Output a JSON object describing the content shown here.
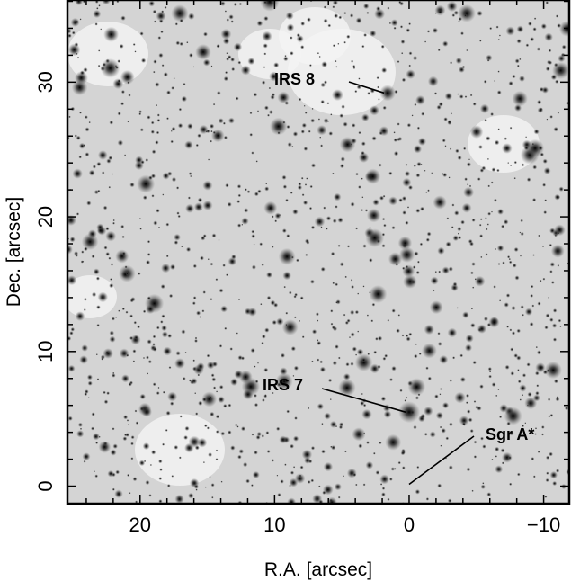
{
  "figure": {
    "x_axis": {
      "label": "R.A. [arcsec]",
      "ticks": [
        20,
        10,
        0,
        -10
      ],
      "tick_labels": [
        "20",
        "10",
        "0",
        "−10"
      ],
      "range": [
        25.4,
        -11.9
      ],
      "minor_step": 2
    },
    "y_axis": {
      "label": "Dec. [arcsec]",
      "ticks": [
        0,
        10,
        20,
        30
      ],
      "tick_labels": [
        "0",
        "10",
        "20",
        "30"
      ],
      "range": [
        -1.3,
        36.1
      ],
      "minor_step": 2
    },
    "colormap": "inverted grayscale",
    "annotations": [
      {
        "label": "IRS 8",
        "target": [
          1.6,
          29.2
        ]
      },
      {
        "label": "IRS 7",
        "target": [
          0,
          5.5
        ]
      },
      {
        "label": "Sgr A*",
        "target": [
          0,
          0
        ]
      }
    ]
  }
}
